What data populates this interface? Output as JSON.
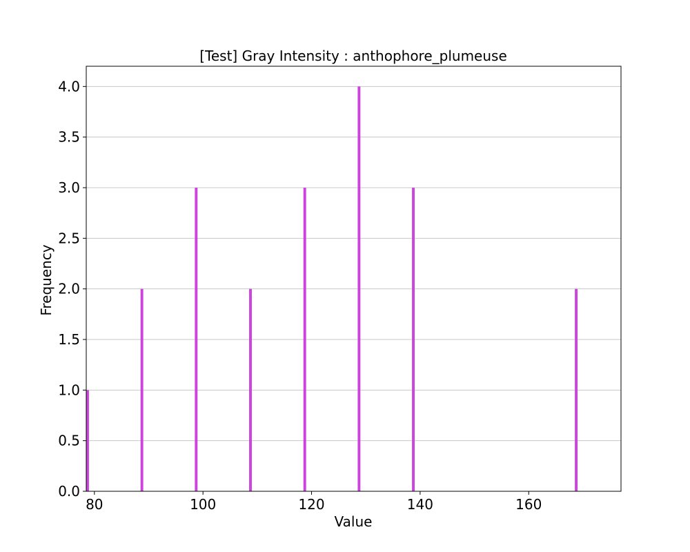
{
  "chart_data": {
    "type": "bar",
    "title": "[Test] Gray Intensity : anthophore_plumeuse",
    "xlabel": "Value",
    "ylabel": "Frequency",
    "xlim": [
      78.5,
      177
    ],
    "ylim": [
      0,
      4.2
    ],
    "xticks": [
      80,
      100,
      120,
      140,
      160
    ],
    "xtick_labels": [
      "80",
      "100",
      "120",
      "140",
      "160"
    ],
    "yticks": [
      0,
      0.5,
      1.0,
      1.5,
      2.0,
      2.5,
      3.0,
      3.5,
      4.0
    ],
    "ytick_labels": [
      "0.0",
      "0.5",
      "1.0",
      "1.5",
      "2.0",
      "2.5",
      "3.0",
      "3.5",
      "4.0"
    ],
    "x": [
      78.5,
      88.5,
      98.5,
      108.5,
      118.5,
      128.5,
      138.5,
      168.5
    ],
    "values": [
      1,
      2,
      3,
      2,
      3,
      4,
      3,
      2
    ],
    "bar_width": 0.5,
    "grid": {
      "y": true,
      "x": false
    },
    "bar_color": "#cc44dd",
    "grid_color": "#c8c8c8"
  }
}
